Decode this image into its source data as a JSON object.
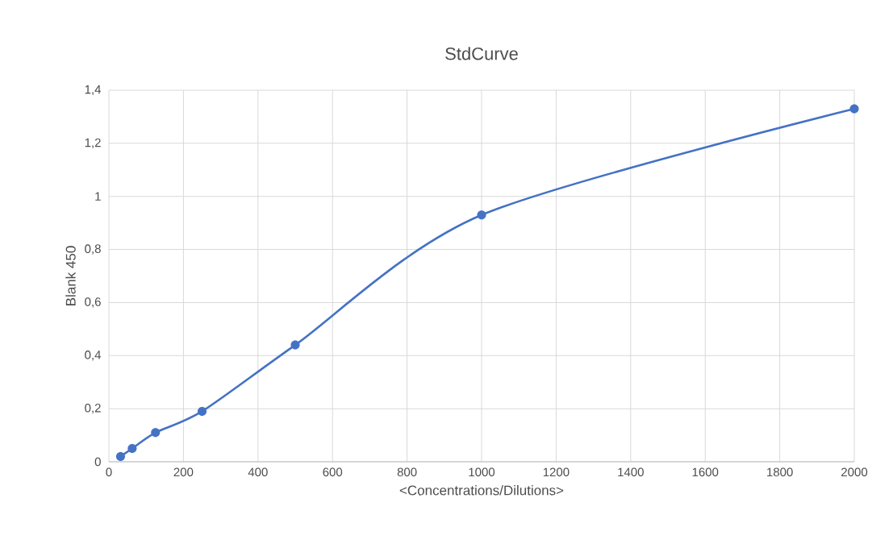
{
  "chart_data": {
    "type": "line",
    "title": "StdCurve",
    "xlabel": "<Concentrations/Dilutions>",
    "ylabel": "Blank 450",
    "x": [
      31.25,
      62.5,
      125,
      250,
      500,
      1000,
      2000
    ],
    "series": [
      {
        "color": "#4472c4",
        "values": [
          0.02,
          0.05,
          0.11,
          0.19,
          0.44,
          0.93,
          1.33
        ]
      }
    ],
    "marker": "circle",
    "line_style": "solid",
    "grid": true,
    "xlim": [
      0,
      2000
    ],
    "xticks": [
      0,
      200,
      400,
      600,
      800,
      1000,
      1200,
      1400,
      1600,
      1800,
      2000
    ],
    "ylim": [
      0,
      1.4
    ],
    "yticks": [
      {
        "value": 0,
        "label": "0"
      },
      {
        "value": 0.2,
        "label": "0,2"
      },
      {
        "value": 0.4,
        "label": "0,4"
      },
      {
        "value": 0.6,
        "label": "0,6"
      },
      {
        "value": 0.8,
        "label": "0,8"
      },
      {
        "value": 1,
        "label": "1"
      },
      {
        "value": 1.2,
        "label": "1,2"
      },
      {
        "value": 1.4,
        "label": "1,4"
      }
    ]
  }
}
